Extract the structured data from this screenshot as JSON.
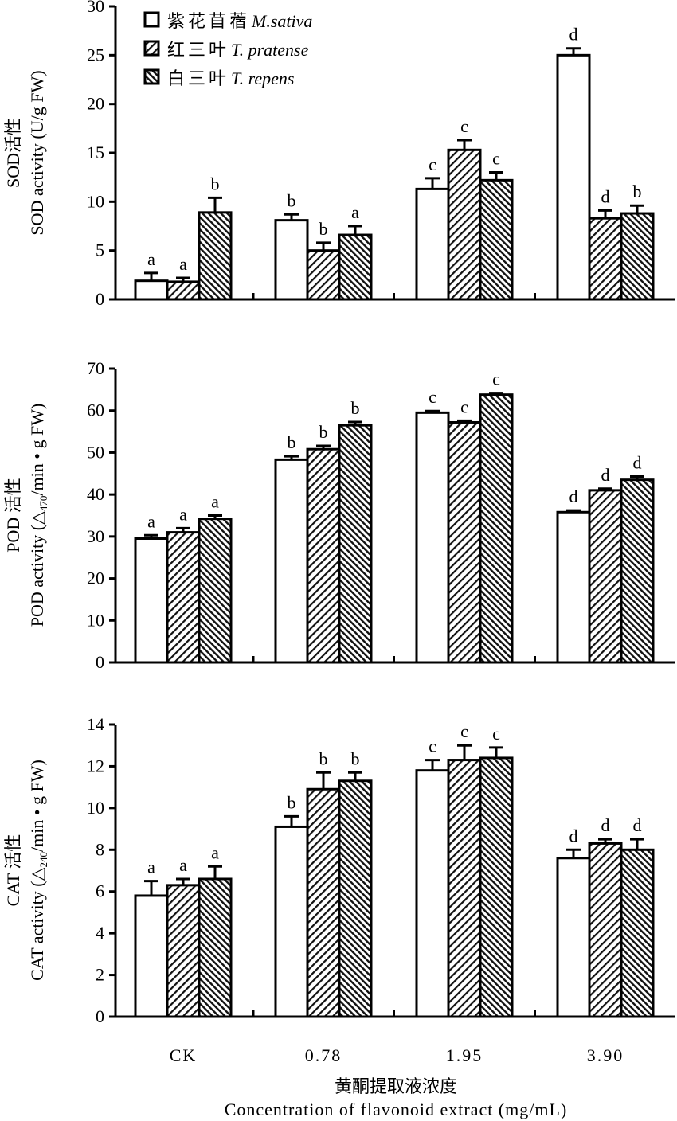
{
  "chart_data": {
    "type": "bar",
    "categories": [
      "CK",
      "0.78",
      "1.95",
      "3.90"
    ],
    "xlabel_cn": "黄酮提取液浓度",
    "xlabel_en": "Concentration of flavonoid extract (mg/mL)",
    "legend": {
      "placement": "top-left",
      "entries": [
        {
          "cn": "紫花苜蓿",
          "latin": "M.sativa",
          "pattern": "white"
        },
        {
          "cn": "红三叶",
          "latin": "T. pratense",
          "pattern": "sparse-diagonal"
        },
        {
          "cn": "白三叶",
          "latin": "T. repens",
          "pattern": "dense-diagonal"
        }
      ]
    },
    "panels": [
      {
        "name": "SOD",
        "ylabel_cn": "SOD活性",
        "ylabel_en": [
          "SOD activity (U/g FW)",
          "",
          ""
        ],
        "ylim": [
          0,
          30
        ],
        "yticks": [
          "0",
          "5",
          "10",
          "15",
          "20",
          "25",
          "30"
        ],
        "series": [
          {
            "name": "M.sativa",
            "values": [
              1.9,
              8.1,
              11.3,
              25.0
            ],
            "errors": [
              0.8,
              0.6,
              1.1,
              0.7
            ],
            "letters": [
              "a",
              "b",
              "c",
              "d"
            ]
          },
          {
            "name": "T. pratense",
            "values": [
              1.8,
              5.0,
              15.3,
              8.3
            ],
            "errors": [
              0.4,
              0.8,
              1.0,
              0.8
            ],
            "letters": [
              "a",
              "b",
              "c",
              "d"
            ]
          },
          {
            "name": "T. repens",
            "values": [
              8.9,
              6.6,
              12.2,
              8.8
            ],
            "errors": [
              1.5,
              0.9,
              0.8,
              0.8
            ],
            "letters": [
              "b",
              "a",
              "c",
              "b"
            ]
          }
        ]
      },
      {
        "name": "POD",
        "ylabel_cn": "POD 活性",
        "ylabel_en": [
          "POD activity (△",
          "470",
          "/min • g FW)"
        ],
        "ylim": [
          0,
          70
        ],
        "yticks": [
          "0",
          "10",
          "20",
          "30",
          "40",
          "50",
          "60",
          "70"
        ],
        "series": [
          {
            "name": "M.sativa",
            "values": [
              29.5,
              48.3,
              59.5,
              35.8
            ],
            "errors": [
              0.8,
              0.8,
              0.4,
              0.4
            ],
            "letters": [
              "a",
              "b",
              "c",
              "d"
            ]
          },
          {
            "name": "T. pratense",
            "values": [
              31.0,
              50.8,
              57.2,
              41.0
            ],
            "errors": [
              1.0,
              0.8,
              0.4,
              0.4
            ],
            "letters": [
              "a",
              "b",
              "c",
              "d"
            ]
          },
          {
            "name": "T. repens",
            "values": [
              34.2,
              56.5,
              63.8,
              43.5
            ],
            "errors": [
              0.8,
              0.8,
              0.4,
              0.8
            ],
            "letters": [
              "a",
              "b",
              "c",
              "d"
            ]
          }
        ]
      },
      {
        "name": "CAT",
        "ylabel_cn": "CAT 活性",
        "ylabel_en": [
          "CAT activity (△",
          "240",
          "/min • g FW)"
        ],
        "ylim": [
          0,
          14
        ],
        "yticks": [
          "0",
          "2",
          "4",
          "6",
          "8",
          "10",
          "12",
          "14"
        ],
        "series": [
          {
            "name": "M.sativa",
            "values": [
              5.8,
              9.1,
              11.8,
              7.6
            ],
            "errors": [
              0.7,
              0.5,
              0.5,
              0.4
            ],
            "letters": [
              "a",
              "b",
              "c",
              "d"
            ]
          },
          {
            "name": "T. pratense",
            "values": [
              6.3,
              10.9,
              12.3,
              8.3
            ],
            "errors": [
              0.3,
              0.8,
              0.7,
              0.2
            ],
            "letters": [
              "a",
              "b",
              "c",
              "d"
            ]
          },
          {
            "name": "T. repens",
            "values": [
              6.6,
              11.3,
              12.4,
              8.0
            ],
            "errors": [
              0.6,
              0.4,
              0.5,
              0.5
            ],
            "letters": [
              "a",
              "b",
              "c",
              "d"
            ]
          }
        ]
      }
    ]
  }
}
